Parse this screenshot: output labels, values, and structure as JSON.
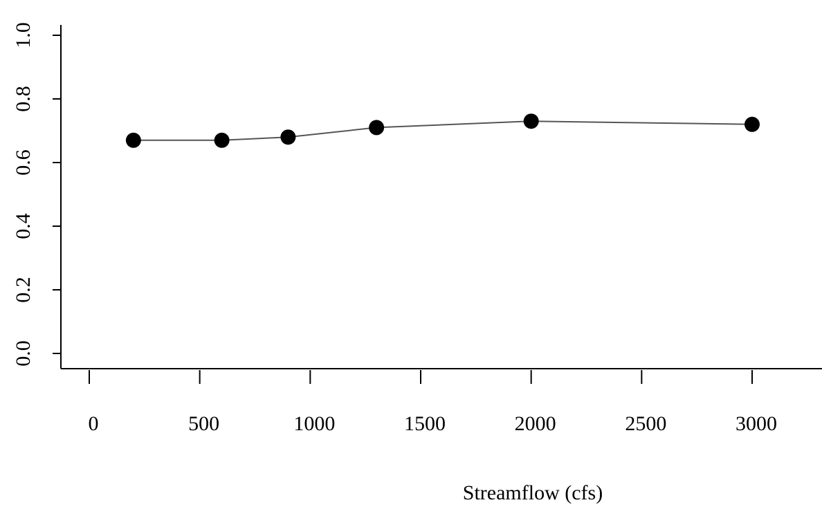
{
  "chart_data": {
    "type": "line",
    "x_label": "Streamflow (cfs)",
    "x": [
      200,
      600,
      900,
      1300,
      2000,
      3000
    ],
    "values": [
      0.67,
      0.67,
      0.68,
      0.71,
      0.73,
      0.72
    ],
    "color": "#000000",
    "line_color": "#555555",
    "xlim": [
      0,
      3000
    ],
    "xticks": [
      0,
      500,
      1000,
      1500,
      2000,
      2500,
      3000
    ],
    "ylim": [
      0,
      1
    ],
    "yticks": [
      {
        "value": 0,
        "label": "0.0"
      },
      0.2,
      0.4,
      0.6,
      0.8,
      {
        "value": 1,
        "label": "1.0"
      }
    ]
  }
}
